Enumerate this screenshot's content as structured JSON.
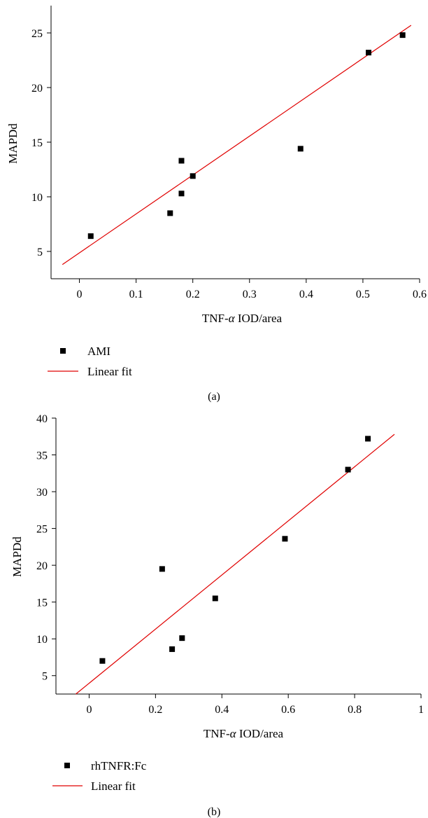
{
  "chart_data": [
    {
      "type": "scatter",
      "panel_label": "(a)",
      "xlabel_prefix": "TNF-",
      "xlabel_alpha": "α",
      "xlabel_suffix": " IOD/area",
      "ylabel": "MAPDd",
      "xlim": [
        -0.05,
        0.6
      ],
      "ylim": [
        2.5,
        27.5
      ],
      "xticks": [
        0,
        0.1,
        0.2,
        0.3,
        0.4,
        0.5,
        0.6
      ],
      "xtick_labels": [
        "0",
        "0.1",
        "0.2",
        "0.3",
        "0.4",
        "0.5",
        "0.6"
      ],
      "yticks": [
        5,
        10,
        15,
        20,
        25
      ],
      "ytick_labels": [
        "5",
        "10",
        "15",
        "20",
        "25"
      ],
      "series": [
        {
          "name": "AMI",
          "marker": "square",
          "color": "#000000",
          "points": [
            [
              0.02,
              6.4
            ],
            [
              0.16,
              8.5
            ],
            [
              0.18,
              10.3
            ],
            [
              0.18,
              13.3
            ],
            [
              0.2,
              11.9
            ],
            [
              0.39,
              14.4
            ],
            [
              0.51,
              23.2
            ],
            [
              0.57,
              24.8
            ]
          ]
        },
        {
          "name": "Linear fit",
          "kind": "line",
          "color": "#e00000",
          "x": [
            -0.03,
            0.585
          ],
          "y": [
            3.8,
            25.7
          ]
        }
      ],
      "legend": {
        "placement": "below",
        "labels": [
          "AMI",
          "Linear fit"
        ]
      }
    },
    {
      "type": "scatter",
      "panel_label": "(b)",
      "xlabel_prefix": "TNF-",
      "xlabel_alpha": "α",
      "xlabel_suffix": " IOD/area",
      "ylabel": "MAPDd",
      "xlim": [
        -0.1,
        1.0
      ],
      "ylim": [
        2.5,
        40
      ],
      "xticks": [
        0,
        0.2,
        0.4,
        0.6,
        0.8,
        1.0
      ],
      "xtick_labels": [
        "0",
        "0.2",
        "0.4",
        "0.6",
        "0.8",
        "1"
      ],
      "yticks": [
        5,
        10,
        15,
        20,
        25,
        30,
        35,
        40
      ],
      "ytick_labels": [
        "5",
        "10",
        "15",
        "20",
        "25",
        "30",
        "35",
        "40"
      ],
      "series": [
        {
          "name": "rhTNFR:Fc",
          "marker": "square",
          "color": "#000000",
          "points": [
            [
              0.04,
              7.0
            ],
            [
              0.22,
              19.5
            ],
            [
              0.25,
              8.6
            ],
            [
              0.28,
              10.1
            ],
            [
              0.38,
              15.5
            ],
            [
              0.59,
              23.6
            ],
            [
              0.78,
              33.0
            ],
            [
              0.84,
              37.2
            ]
          ]
        },
        {
          "name": "Linear fit",
          "kind": "line",
          "color": "#e00000",
          "x": [
            -0.04,
            0.92
          ],
          "y": [
            2.5,
            37.8
          ]
        }
      ],
      "legend": {
        "placement": "below",
        "labels": [
          "rhTNFR:Fc",
          "Linear fit"
        ]
      }
    }
  ]
}
